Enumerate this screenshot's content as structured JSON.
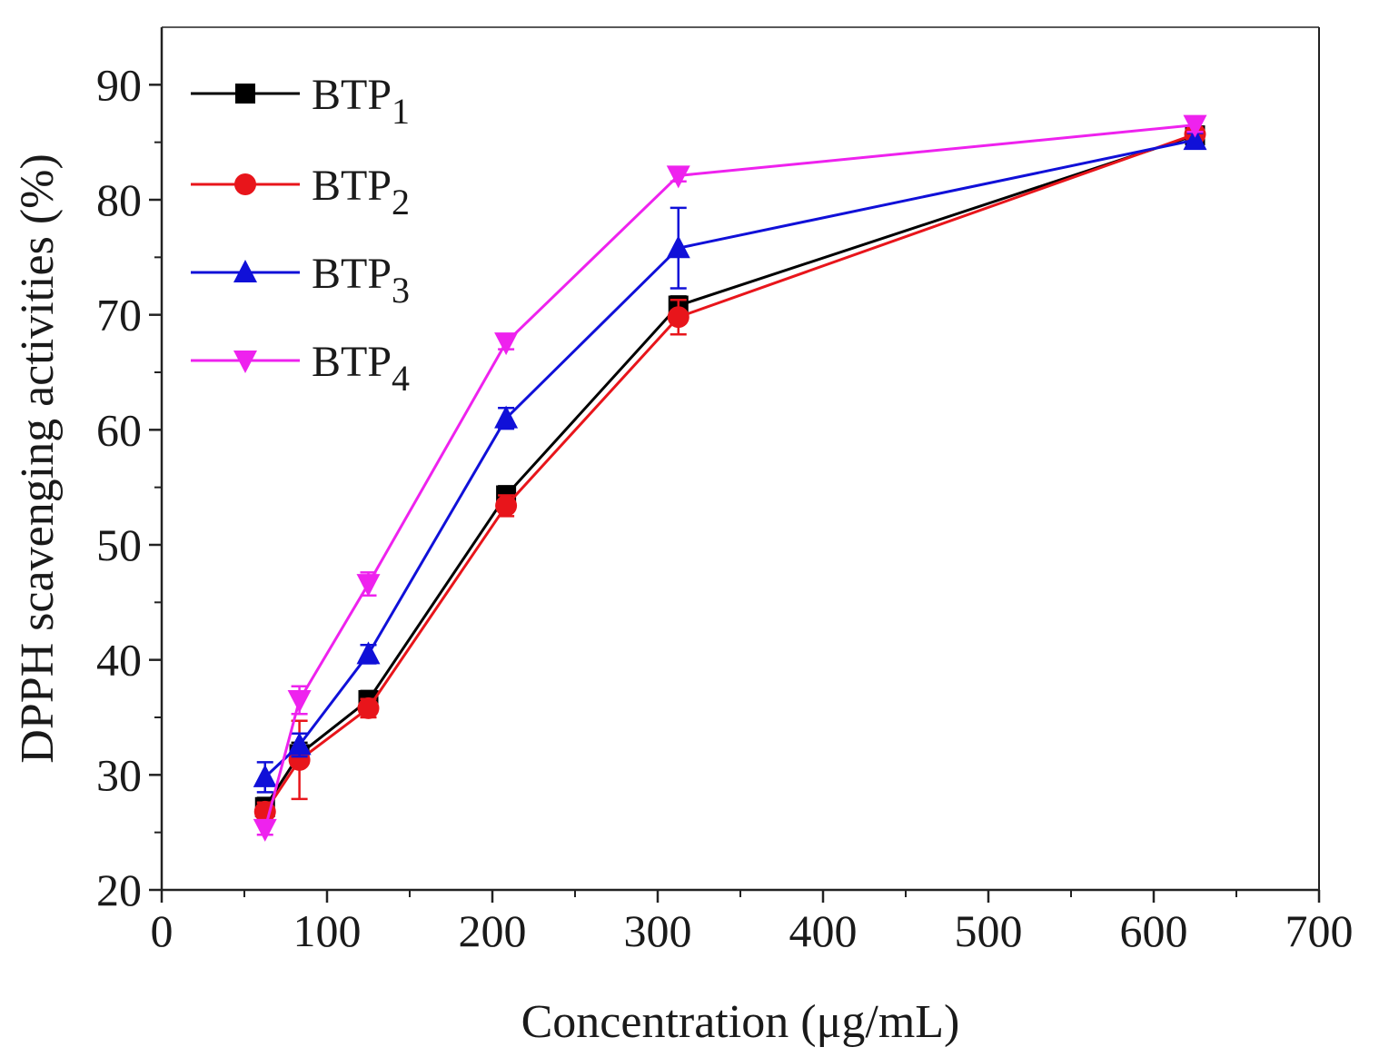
{
  "chart_data": {
    "type": "line",
    "title": "",
    "xlabel": "Concentration (μg/mL)",
    "ylabel": "DPPH scavenging activities (%)",
    "xlim": [
      0,
      700
    ],
    "ylim": [
      20,
      95
    ],
    "xticks": [
      0,
      100,
      200,
      300,
      400,
      500,
      600,
      700
    ],
    "yticks": [
      20,
      30,
      40,
      50,
      60,
      70,
      80,
      90
    ],
    "grid": false,
    "legend_position": "top-left",
    "series": [
      {
        "name": "BTP",
        "subscript": "1",
        "color": "#000000",
        "marker": "square",
        "x": [
          62.5,
          83.3,
          125,
          208.3,
          312.5,
          625
        ],
        "y": [
          27.2,
          31.8,
          36.5,
          54.3,
          70.8,
          85.6
        ],
        "err": [
          0.8,
          1.0,
          0.8,
          0.8,
          0.8,
          0.6
        ]
      },
      {
        "name": "BTP",
        "subscript": "2",
        "color": "#e8151b",
        "marker": "circle",
        "x": [
          62.5,
          83.3,
          125,
          208.3,
          312.5,
          625
        ],
        "y": [
          26.8,
          31.3,
          35.8,
          53.4,
          69.8,
          85.7
        ],
        "err": [
          0.8,
          3.4,
          0.8,
          0.9,
          1.5,
          0.6
        ]
      },
      {
        "name": "BTP",
        "subscript": "3",
        "color": "#1010d8",
        "marker": "triangle-up",
        "x": [
          62.5,
          83.3,
          125,
          208.3,
          312.5,
          625
        ],
        "y": [
          29.8,
          32.6,
          40.5,
          61.0,
          75.8,
          85.2
        ],
        "err": [
          1.3,
          1.0,
          0.8,
          0.9,
          3.5,
          0.6
        ]
      },
      {
        "name": "BTP",
        "subscript": "4",
        "color": "#ee22ee",
        "marker": "triangle-down",
        "x": [
          62.5,
          83.3,
          125,
          208.3,
          312.5,
          625
        ],
        "y": [
          25.3,
          36.5,
          46.6,
          67.6,
          82.1,
          86.5
        ],
        "err": [
          0.5,
          1.2,
          1.0,
          0.6,
          0.5,
          0.6
        ]
      }
    ]
  }
}
